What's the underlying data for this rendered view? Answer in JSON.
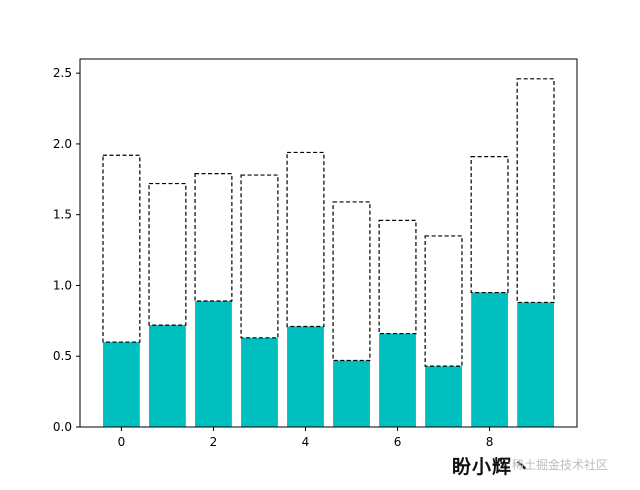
{
  "chart_data": {
    "type": "bar",
    "x": [
      0,
      1,
      2,
      3,
      4,
      5,
      6,
      7,
      8,
      9
    ],
    "series": [
      {
        "values": [
          0.6,
          0.72,
          0.89,
          0.63,
          0.71,
          0.47,
          0.66,
          0.43,
          0.95,
          0.88
        ],
        "color": "#00bfbf",
        "style": "filled"
      },
      {
        "values": [
          1.32,
          1.0,
          0.9,
          1.15,
          1.23,
          1.12,
          0.8,
          0.92,
          0.96,
          1.58
        ],
        "style": "dashed-outline-stacked",
        "edgecolor": "#000000"
      }
    ],
    "stack_totals": [
      1.92,
      1.72,
      1.79,
      1.78,
      1.94,
      1.59,
      1.46,
      1.35,
      1.91,
      2.46
    ],
    "xticks": [
      "0",
      "2",
      "4",
      "6",
      "8"
    ],
    "yticks": [
      "0.0",
      "0.5",
      "1.0",
      "1.5",
      "2.0",
      "2.5"
    ],
    "xlim": [
      -0.9,
      9.9
    ],
    "ylim": [
      0,
      2.6
    ],
    "grid": false
  },
  "watermark": {
    "main": "盼小辉丶",
    "sub": "稀土掘金技术社区"
  }
}
